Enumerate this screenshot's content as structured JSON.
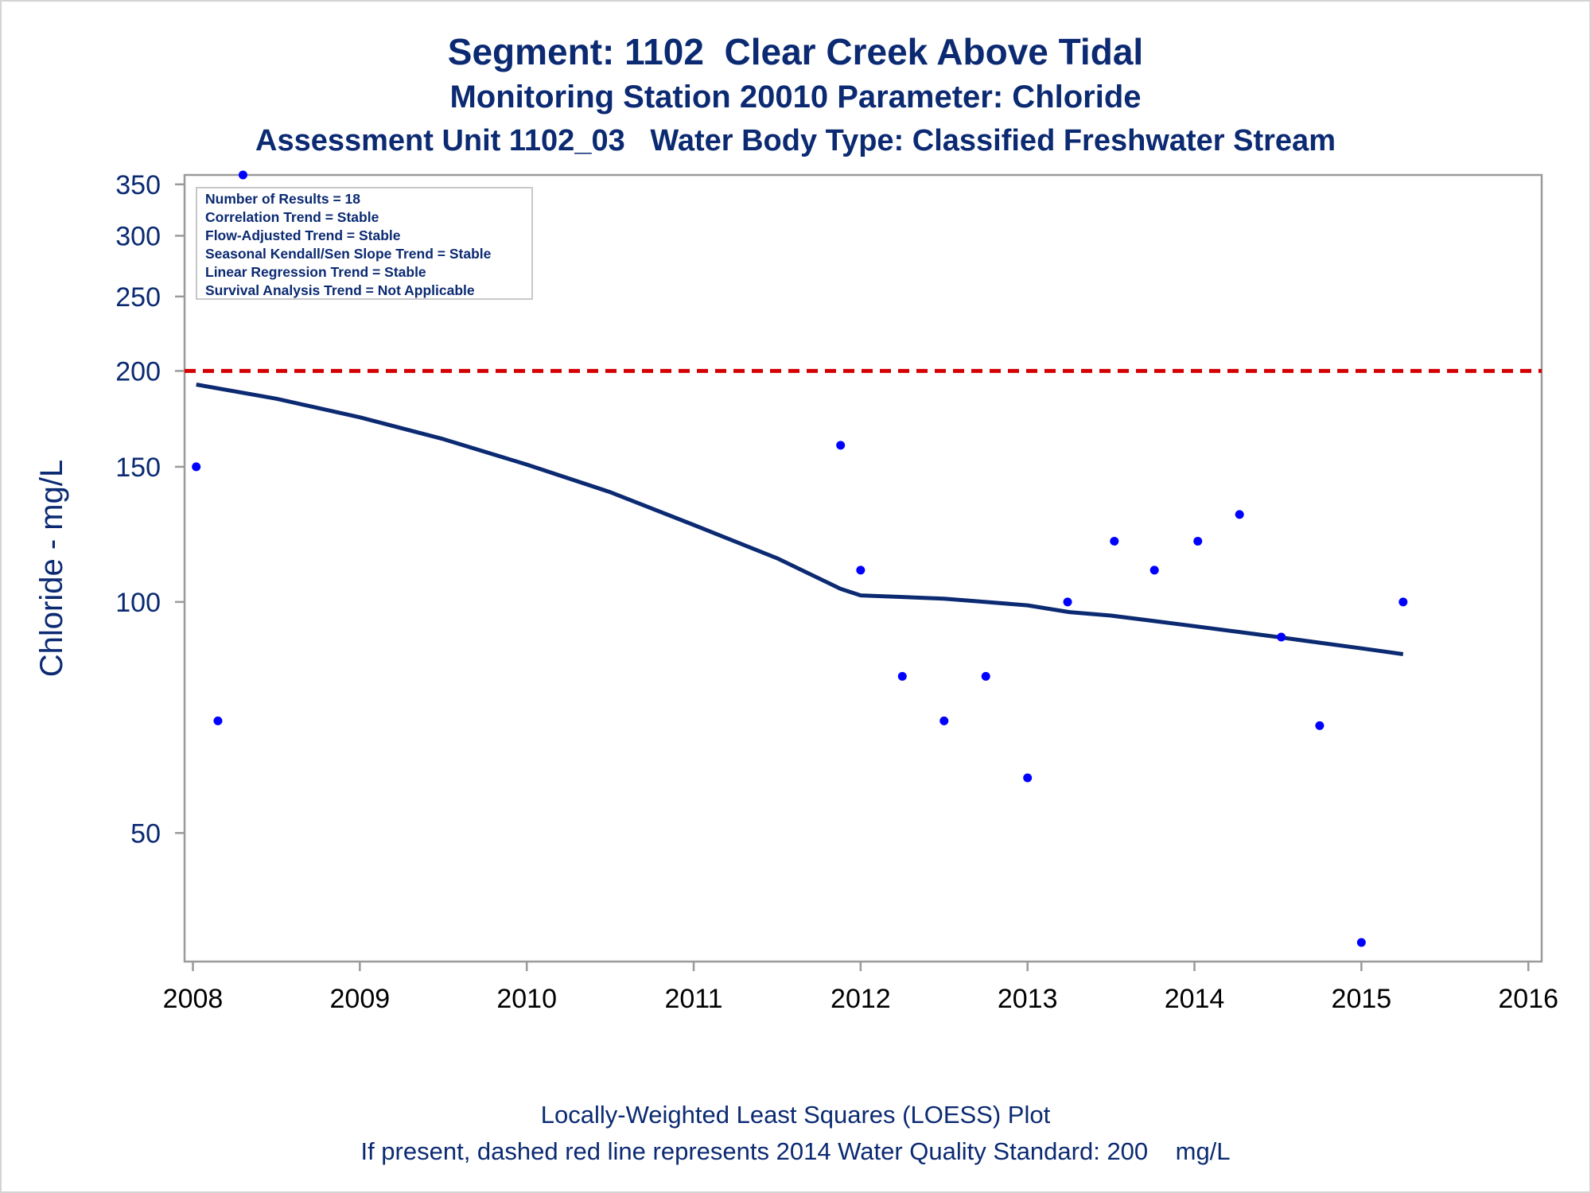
{
  "titles": {
    "line1": "Segment: 1102  Clear Creek Above Tidal",
    "line2": "Monitoring Station 20010 Parameter: Chloride",
    "line3": "Assessment Unit 1102_03   Water Body Type: Classified Freshwater Stream"
  },
  "footnotes": {
    "line1": "Locally-Weighted Least Squares (LOESS) Plot",
    "line2": "If present, dashed red line represents 2014 Water Quality Standard: 200    mg/L"
  },
  "stats_box": [
    "Number of Results = 18",
    "Correlation Trend = Stable",
    "Flow-Adjusted Trend = Stable",
    "Seasonal Kendall/Sen Slope Trend = Stable",
    "Linear Regression Trend = Stable",
    "Survival Analysis Trend = Not Applicable"
  ],
  "colors": {
    "text": "#0b2a72",
    "points": "#0000ff",
    "loess": "#0b2a72",
    "standard_line": "#d40000",
    "axis": "#9a9a9a"
  },
  "chart_data": {
    "type": "scatter",
    "xlabel": "",
    "ylabel": "Chloride - mg/L",
    "x_ticks": [
      2008,
      2009,
      2010,
      2011,
      2012,
      2013,
      2014,
      2015,
      2016
    ],
    "y_ticks": [
      50,
      100,
      150,
      200,
      250,
      300,
      350
    ],
    "y_scale": "log",
    "xlim": [
      2007.95,
      2016.08
    ],
    "ylim": [
      34,
      360
    ],
    "grid": false,
    "standard_line": {
      "value": 200,
      "style": "dashed"
    },
    "series": [
      {
        "kind": "points",
        "x": [
          2008.02,
          2008.15,
          2008.3,
          2011.88,
          2012.0,
          2012.25,
          2012.5,
          2012.75,
          2013.0,
          2013.24,
          2013.52,
          2013.76,
          2014.02,
          2014.27,
          2014.52,
          2014.75,
          2015.0,
          2015.25
        ],
        "y": [
          150,
          70,
          360,
          160,
          110,
          80,
          70,
          80,
          59,
          100,
          120,
          110,
          120,
          130,
          90,
          69,
          36,
          100
        ]
      },
      {
        "kind": "loess",
        "x": [
          2008.02,
          2008.5,
          2009.0,
          2009.5,
          2010.0,
          2010.5,
          2011.0,
          2011.5,
          2011.88,
          2012.0,
          2012.25,
          2012.5,
          2012.75,
          2013.0,
          2013.25,
          2013.5,
          2013.75,
          2014.0,
          2014.25,
          2014.5,
          2014.75,
          2015.0,
          2015.25
        ],
        "y": [
          192,
          184,
          174,
          163,
          151,
          139,
          126,
          114,
          104,
          102,
          101.5,
          101,
          100,
          99,
          97,
          96,
          94.5,
          93,
          91.5,
          90,
          88.5,
          87,
          85.5
        ]
      }
    ]
  }
}
